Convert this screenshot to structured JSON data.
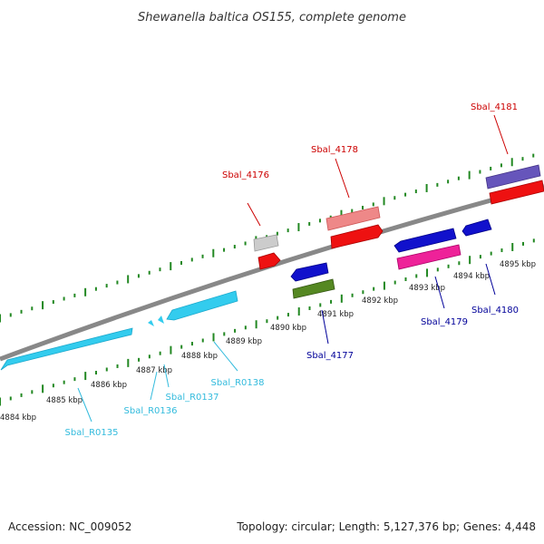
{
  "title": "Shewanella baltica OS155, complete genome",
  "footer": {
    "accession": "Accession: NC_009052",
    "summary": "Topology: circular; Length: 5,127,376 bp; Genes: 4,448"
  },
  "kbp_labels": [
    "4884 kbp",
    "4885 kbp",
    "4886 kbp",
    "4887 kbp",
    "4888 kbp",
    "4889 kbp",
    "4890 kbp",
    "4891 kbp",
    "4892 kbp",
    "4893 kbp",
    "4894 kbp",
    "4895 kbp"
  ],
  "genes": [
    {
      "name": "Sbal_R0135",
      "color": "#33ccee",
      "label_color": "#33bbdd"
    },
    {
      "name": "Sbal_R0136",
      "color": "#33ccee",
      "label_color": "#33bbdd"
    },
    {
      "name": "Sbal_R0137",
      "color": "#33ccee",
      "label_color": "#33bbdd"
    },
    {
      "name": "Sbal_R0138",
      "color": "#33ccee",
      "label_color": "#33bbdd"
    },
    {
      "name": "Sbal_4176",
      "color": "#cccccc",
      "label_color": "#cc0000"
    },
    {
      "name": "Sbal_4177",
      "color": "#1111cc",
      "label_color": "#000099"
    },
    {
      "name": "Sbal_4178",
      "color": "#ee8888",
      "label_color": "#cc0000"
    },
    {
      "name": "Sbal_4179",
      "color": "#1111cc",
      "label_color": "#000099"
    },
    {
      "name": "Sbal_4180",
      "color": "#1111cc",
      "label_color": "#000099"
    },
    {
      "name": "Sbal_4181",
      "color": "#6655bb",
      "label_color": "#cc0000"
    }
  ],
  "colors": {
    "backbone": "#888888",
    "tick": "#228822",
    "red": "#ee1111",
    "pink": "#ee2299",
    "olive": "#558822",
    "gray": "#cccccc"
  }
}
